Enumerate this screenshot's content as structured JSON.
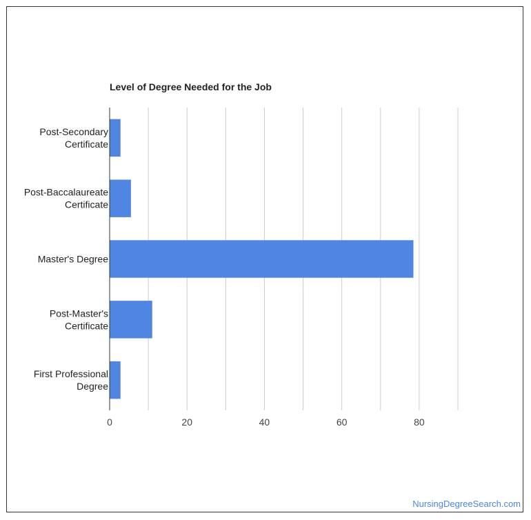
{
  "chart_data": {
    "type": "bar",
    "orientation": "horizontal",
    "title": "Level of Degree Needed for the Job",
    "categories": [
      [
        "Post-Secondary",
        "Certificate"
      ],
      [
        "Post-Baccalaureate",
        "Certificate"
      ],
      [
        "Master's Degree"
      ],
      [
        "Post-Master's",
        "Certificate"
      ],
      [
        "First Professional",
        "Degree"
      ]
    ],
    "values": [
      2.8,
      5.5,
      78.5,
      11.0,
      2.8
    ],
    "xlim": [
      0,
      90
    ],
    "xticks": [
      0,
      20,
      40,
      60,
      80
    ],
    "grid": true,
    "bar_color": "#5086e3",
    "grid_color": "#cccccc"
  },
  "source": {
    "label": "NursingDegreeSearch.com",
    "link_color": "#4a86e8"
  }
}
